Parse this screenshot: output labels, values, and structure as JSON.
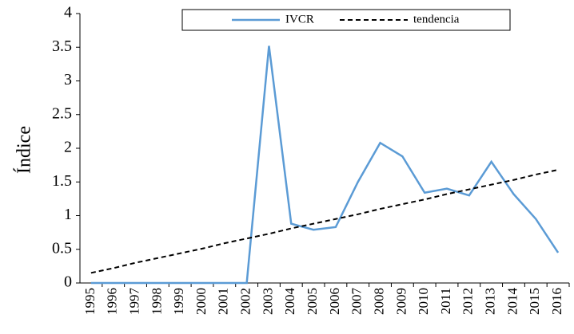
{
  "chart_data": {
    "type": "line",
    "y_label": "Índice",
    "categories": [
      "1995",
      "1996",
      "1997",
      "1998",
      "1999",
      "2000",
      "2001",
      "2002",
      "2003",
      "2004",
      "2005",
      "2006",
      "2007",
      "2008",
      "2009",
      "2010",
      "2011",
      "2012",
      "2013",
      "2014",
      "2015",
      "2016"
    ],
    "series": [
      {
        "name": "IVCR",
        "color": "#5b9bd5",
        "line_style": "solid",
        "values": [
          0,
          0,
          0,
          0,
          0,
          0,
          0,
          0,
          3.52,
          0.88,
          0.79,
          0.83,
          1.5,
          2.08,
          1.88,
          1.34,
          1.4,
          1.3,
          1.8,
          1.32,
          0.95,
          0.45
        ]
      },
      {
        "name": "tendencia",
        "color": "#000000",
        "line_style": "dashed",
        "values": [
          0.15,
          0.22,
          0.3,
          0.37,
          0.44,
          0.51,
          0.59,
          0.66,
          0.73,
          0.81,
          0.88,
          0.95,
          1.02,
          1.1,
          1.17,
          1.24,
          1.32,
          1.39,
          1.46,
          1.53,
          1.61,
          1.68
        ]
      }
    ],
    "ylim": [
      0,
      4
    ],
    "yticks": [
      0,
      0.5,
      1,
      1.5,
      2,
      2.5,
      3,
      3.5,
      4
    ],
    "grid": false,
    "legend": "top"
  }
}
